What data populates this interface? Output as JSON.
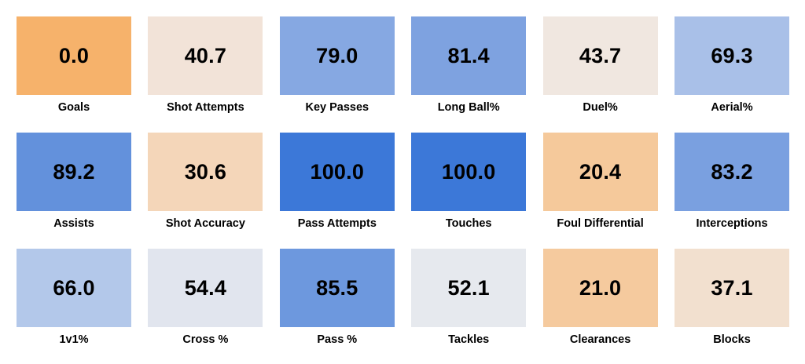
{
  "chart_data": {
    "type": "heatmap",
    "value_scale": [
      0,
      100
    ],
    "color_scale": {
      "low": "#f6b26b",
      "mid": "#e9ebee",
      "high": "#3c78d8"
    },
    "tiles": [
      {
        "label": "Goals",
        "value": "0.0",
        "color": "#f6b26b"
      },
      {
        "label": "Shot Attempts",
        "value": "40.7",
        "color": "#f2e3d8"
      },
      {
        "label": "Key Passes",
        "value": "79.0",
        "color": "#86a8e2"
      },
      {
        "label": "Long Ball%",
        "value": "81.4",
        "color": "#7ea2e0"
      },
      {
        "label": "Duel%",
        "value": "43.7",
        "color": "#f0e7e0"
      },
      {
        "label": "Aerial%",
        "value": "69.3",
        "color": "#a9c0e8"
      },
      {
        "label": "Assists",
        "value": "89.2",
        "color": "#6391dc"
      },
      {
        "label": "Shot Accuracy",
        "value": "30.6",
        "color": "#f4d6b9"
      },
      {
        "label": "Pass Attempts",
        "value": "100.0",
        "color": "#3c78d8"
      },
      {
        "label": "Touches",
        "value": "100.0",
        "color": "#3c78d8"
      },
      {
        "label": "Foul Differential",
        "value": "20.4",
        "color": "#f5c99b"
      },
      {
        "label": "Interceptions",
        "value": "83.2",
        "color": "#7aa0e0"
      },
      {
        "label": "1v1%",
        "value": "66.0",
        "color": "#b3c8ea"
      },
      {
        "label": "Cross %",
        "value": "54.4",
        "color": "#e1e5ee"
      },
      {
        "label": "Pass %",
        "value": "85.5",
        "color": "#6d98de"
      },
      {
        "label": "Tackles",
        "value": "52.1",
        "color": "#e6e9ee"
      },
      {
        "label": "Clearances",
        "value": "21.0",
        "color": "#f5ca9e"
      },
      {
        "label": "Blocks",
        "value": "37.1",
        "color": "#f2e0cf"
      }
    ]
  }
}
